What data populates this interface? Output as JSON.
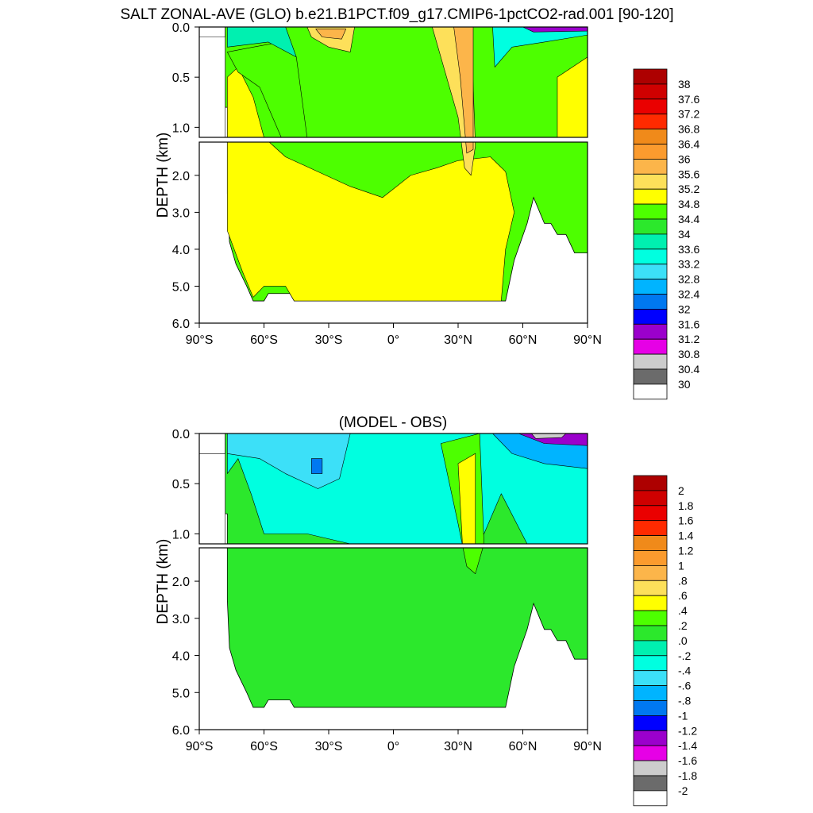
{
  "figure": {
    "title": "SALT ZONAL-AVE (GLO) b.e21.B1PCT.f09_g17.CMIP6-1pctCO2-rad.001 [90-120]",
    "subtitle": "(MODEL - OBS)"
  },
  "chart_data": [
    {
      "type": "heatmap",
      "name": "salinity-section",
      "title": "SALT ZONAL-AVE (GLO) b.e21.B1PCT.f09_g17.CMIP6-1pctCO2-rad.001 [90-120]",
      "xlabel": "",
      "ylabel": "DEPTH (km)",
      "x_ticks": [
        "90°S",
        "60°S",
        "30°S",
        "0°",
        "30°N",
        "60°N",
        "90°N"
      ],
      "x_tick_values": [
        -90,
        -60,
        -30,
        0,
        30,
        60,
        90
      ],
      "xlim": [
        -90,
        90
      ],
      "y_ticks_upper": [
        "0.0",
        "0.5",
        "1.0"
      ],
      "y_ticks_lower": [
        "2.0",
        "3.0",
        "4.0",
        "5.0",
        "6.0"
      ],
      "ylim_upper_km": [
        0,
        1.1
      ],
      "ylim_lower_km": [
        1.1,
        6.0
      ],
      "colorbar_levels": [
        "38",
        "37.6",
        "37.2",
        "36.8",
        "36.4",
        "36",
        "35.6",
        "35.2",
        "34.8",
        "34.4",
        "34",
        "33.6",
        "33.2",
        "32.8",
        "32.4",
        "32",
        "31.6",
        "31.2",
        "30.8",
        "30.4",
        "30"
      ],
      "colorbar_colors": [
        "#ad0000",
        "#cf0000",
        "#ea0000",
        "#ff2a00",
        "#f08a1a",
        "#fb9b2e",
        "#fcb54a",
        "#fde05a",
        "#ffff00",
        "#4dff00",
        "#2ce82c",
        "#00f0b0",
        "#00ffe0",
        "#3ce0f8",
        "#00b4ff",
        "#0078f0",
        "#0000ff",
        "#9b00cc",
        "#e600e6",
        "#cccccc",
        "#6b6b6b",
        "#ffffff"
      ]
    },
    {
      "type": "heatmap",
      "name": "difference-section",
      "title": "(MODEL - OBS)",
      "xlabel": "",
      "ylabel": "DEPTH (km)",
      "x_ticks": [
        "90°S",
        "60°S",
        "30°S",
        "0°",
        "30°N",
        "60°N",
        "90°N"
      ],
      "x_tick_values": [
        -90,
        -60,
        -30,
        0,
        30,
        60,
        90
      ],
      "xlim": [
        -90,
        90
      ],
      "y_ticks_upper": [
        "0.0",
        "0.5",
        "1.0"
      ],
      "y_ticks_lower": [
        "2.0",
        "3.0",
        "4.0",
        "5.0",
        "6.0"
      ],
      "ylim_upper_km": [
        0,
        1.1
      ],
      "ylim_lower_km": [
        1.1,
        6.0
      ],
      "colorbar_levels": [
        "2",
        "1.8",
        "1.6",
        "1.4",
        "1.2",
        "1",
        ".8",
        ".6",
        ".4",
        ".2",
        ".0",
        "-.2",
        "-.4",
        "-.6",
        "-.8",
        "-1",
        "-1.2",
        "-1.4",
        "-1.6",
        "-1.8",
        "-2"
      ],
      "colorbar_colors": [
        "#ad0000",
        "#cf0000",
        "#ea0000",
        "#ff2a00",
        "#f08a1a",
        "#fb9b2e",
        "#fcb54a",
        "#fde05a",
        "#ffff00",
        "#4dff00",
        "#2ce82c",
        "#00f0b0",
        "#00ffe0",
        "#3ce0f8",
        "#00b4ff",
        "#0078f0",
        "#0000ff",
        "#9b00cc",
        "#e600e6",
        "#cccccc",
        "#6b6b6b",
        "#ffffff"
      ]
    }
  ]
}
